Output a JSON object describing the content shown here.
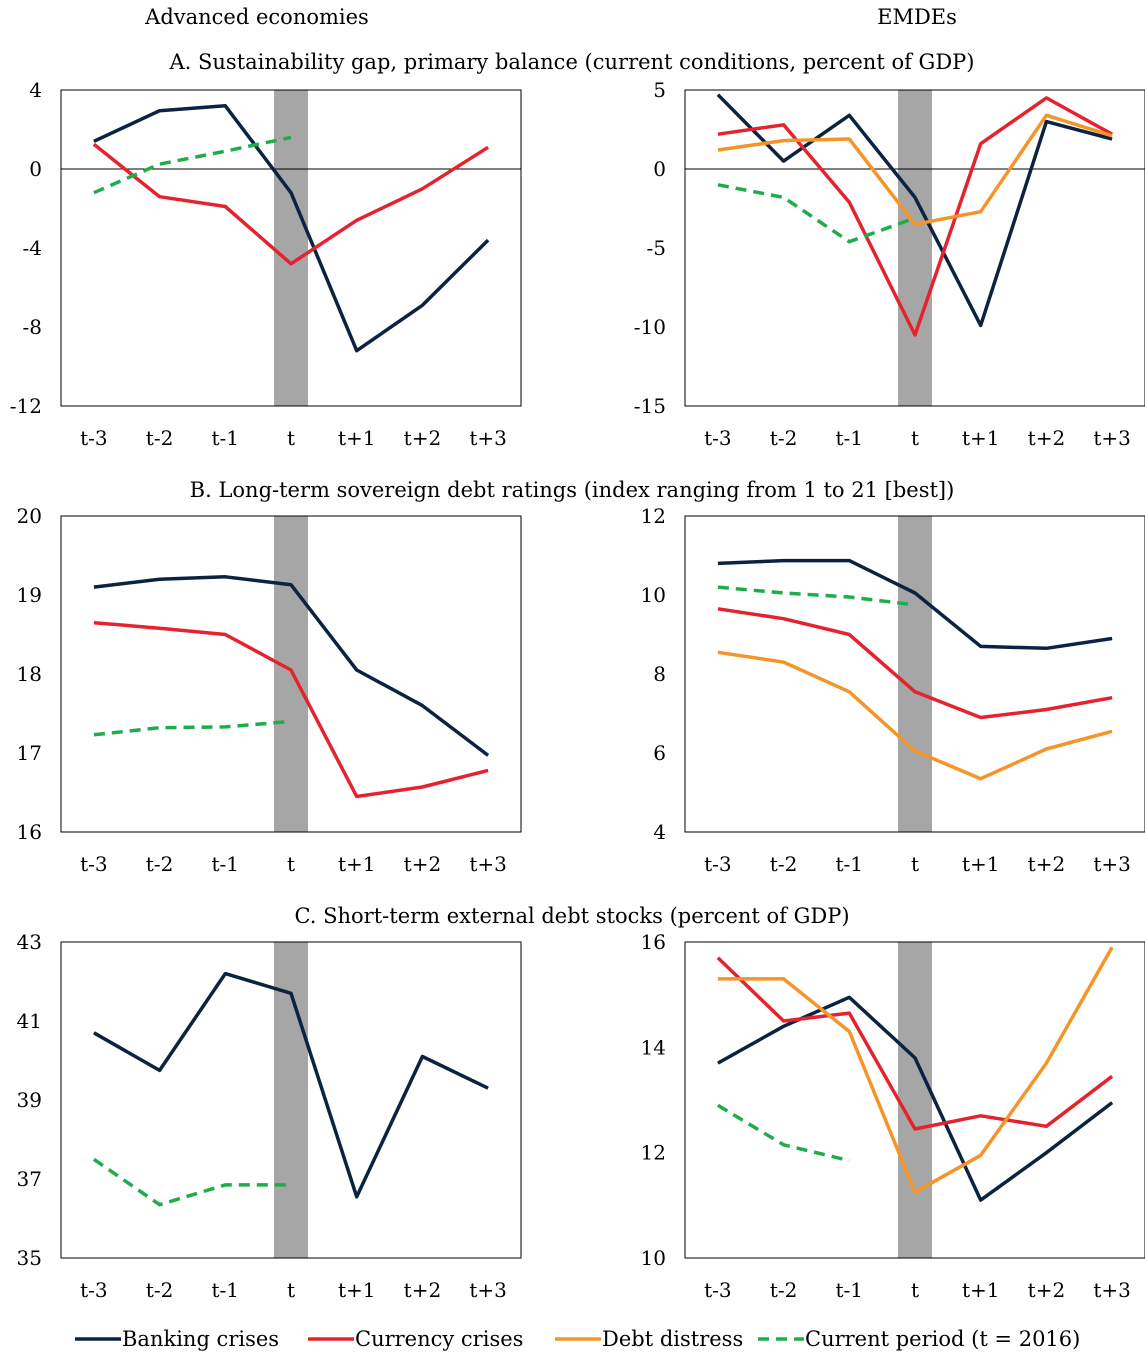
{
  "headers": {
    "left": "Advanced economies",
    "right": "EMDEs"
  },
  "legend": {
    "items": [
      {
        "label": "Banking crises",
        "color": "#0b2341",
        "dash": false
      },
      {
        "label": "Currency crises",
        "color": "#e4232f",
        "dash": false
      },
      {
        "label": "Debt distress",
        "color": "#f4952a",
        "dash": false
      },
      {
        "label": "Current period (t = 2016)",
        "color": "#1fad4b",
        "dash": true
      }
    ]
  },
  "chart_data": [
    {
      "type": "line",
      "row": 0,
      "col": 0,
      "title": "A. Sustainability gap, primary balance (current conditions, percent of GDP)",
      "categories": [
        "t-3",
        "t-2",
        "t-1",
        "t",
        "t+1",
        "t+2",
        "t+3"
      ],
      "ylim": [
        -12,
        4
      ],
      "yticks": [
        "4",
        "0",
        "-4",
        "-8",
        "-12"
      ],
      "yticks_values": [
        4,
        0,
        -4,
        -8,
        -12
      ],
      "zero_line": true,
      "series": [
        {
          "name": "Banking crises",
          "values": [
            1.4,
            2.95,
            3.2,
            -1.2,
            -9.2,
            -6.9,
            -3.6
          ]
        },
        {
          "name": "Currency crises",
          "values": [
            1.25,
            -1.4,
            -1.9,
            -4.8,
            -2.6,
            -1.0,
            1.1
          ]
        },
        {
          "name": "Current period (t = 2016)",
          "values": [
            -1.2,
            0.25,
            0.9,
            1.6,
            null,
            null,
            null
          ]
        }
      ]
    },
    {
      "type": "line",
      "row": 0,
      "col": 1,
      "title": "",
      "categories": [
        "t-3",
        "t-2",
        "t-1",
        "t",
        "t+1",
        "t+2",
        "t+3"
      ],
      "ylim": [
        -15,
        5
      ],
      "yticks": [
        "5",
        "0",
        "-5",
        "-10",
        "-15"
      ],
      "yticks_values": [
        5,
        0,
        -5,
        -10,
        -15
      ],
      "zero_line": true,
      "series": [
        {
          "name": "Banking crises",
          "values": [
            4.7,
            0.5,
            3.4,
            -1.8,
            -9.9,
            3.0,
            1.9
          ]
        },
        {
          "name": "Currency crises",
          "values": [
            2.2,
            2.8,
            -2.1,
            -10.5,
            1.6,
            4.5,
            2.2
          ]
        },
        {
          "name": "Debt distress",
          "values": [
            1.2,
            1.8,
            1.9,
            -3.5,
            -2.7,
            3.4,
            2.1
          ]
        },
        {
          "name": "Current period (t = 2016)",
          "values": [
            -1.0,
            -1.8,
            -4.6,
            -3.1,
            null,
            null,
            null
          ]
        }
      ]
    },
    {
      "type": "line",
      "row": 1,
      "col": 0,
      "title": "B. Long-term sovereign debt ratings (index ranging from 1 to 21 [best])",
      "categories": [
        "t-3",
        "t-2",
        "t-1",
        "t",
        "t+1",
        "t+2",
        "t+3"
      ],
      "ylim": [
        16,
        20
      ],
      "yticks": [
        "20",
        "19",
        "18",
        "17",
        "16"
      ],
      "yticks_values": [
        20,
        19,
        18,
        17,
        16
      ],
      "zero_line": false,
      "series": [
        {
          "name": "Banking crises",
          "values": [
            19.1,
            19.2,
            19.23,
            19.13,
            18.05,
            17.6,
            16.97
          ]
        },
        {
          "name": "Currency crises",
          "values": [
            18.65,
            18.58,
            18.5,
            18.05,
            16.45,
            16.57,
            16.78
          ]
        },
        {
          "name": "Current period (t = 2016)",
          "values": [
            17.23,
            17.32,
            17.33,
            17.4,
            null,
            null,
            null
          ]
        }
      ]
    },
    {
      "type": "line",
      "row": 1,
      "col": 1,
      "title": "",
      "categories": [
        "t-3",
        "t-2",
        "t-1",
        "t",
        "t+1",
        "t+2",
        "t+3"
      ],
      "ylim": [
        4,
        12
      ],
      "yticks": [
        "12",
        "10",
        "8",
        "6",
        "4"
      ],
      "yticks_values": [
        12,
        10,
        8,
        6,
        4
      ],
      "zero_line": false,
      "series": [
        {
          "name": "Banking crises",
          "values": [
            10.8,
            10.87,
            10.87,
            10.05,
            8.7,
            8.65,
            8.9
          ]
        },
        {
          "name": "Currency crises",
          "values": [
            9.65,
            9.4,
            9.0,
            7.55,
            6.9,
            7.1,
            7.4
          ]
        },
        {
          "name": "Debt distress",
          "values": [
            8.55,
            8.3,
            7.55,
            6.05,
            5.35,
            6.1,
            6.55
          ]
        },
        {
          "name": "Current period (t = 2016)",
          "values": [
            10.2,
            10.05,
            9.95,
            9.75,
            null,
            null,
            null
          ]
        }
      ]
    },
    {
      "type": "line",
      "row": 2,
      "col": 0,
      "title": "C. Short-term external debt stocks (percent of GDP)",
      "categories": [
        "t-3",
        "t-2",
        "t-1",
        "t",
        "t+1",
        "t+2",
        "t+3"
      ],
      "ylim": [
        35,
        43
      ],
      "yticks": [
        "43",
        "41",
        "39",
        "37",
        "35"
      ],
      "yticks_values": [
        43,
        41,
        39,
        37,
        35
      ],
      "zero_line": false,
      "series": [
        {
          "name": "Banking crises",
          "values": [
            40.7,
            39.75,
            42.2,
            41.7,
            36.55,
            40.1,
            39.3
          ]
        },
        {
          "name": "Current period (t = 2016)",
          "values": [
            37.5,
            36.35,
            36.85,
            36.85,
            null,
            null,
            null
          ]
        }
      ]
    },
    {
      "type": "line",
      "row": 2,
      "col": 1,
      "title": "",
      "categories": [
        "t-3",
        "t-2",
        "t-1",
        "t",
        "t+1",
        "t+2",
        "t+3"
      ],
      "ylim": [
        10,
        16
      ],
      "yticks": [
        "16",
        "14",
        "12",
        "10"
      ],
      "yticks_values": [
        16,
        14,
        12,
        10
      ],
      "zero_line": false,
      "series": [
        {
          "name": "Banking crises",
          "values": [
            13.7,
            14.4,
            14.95,
            13.8,
            11.1,
            12.0,
            12.95
          ]
        },
        {
          "name": "Currency crises",
          "values": [
            15.7,
            14.5,
            14.65,
            12.45,
            12.7,
            12.5,
            13.45
          ]
        },
        {
          "name": "Debt distress",
          "values": [
            15.3,
            15.3,
            14.3,
            11.25,
            11.95,
            13.7,
            15.9
          ]
        },
        {
          "name": "Current period (t = 2016)",
          "values": [
            12.9,
            12.15,
            11.85,
            null,
            null,
            null,
            null
          ]
        }
      ]
    }
  ]
}
